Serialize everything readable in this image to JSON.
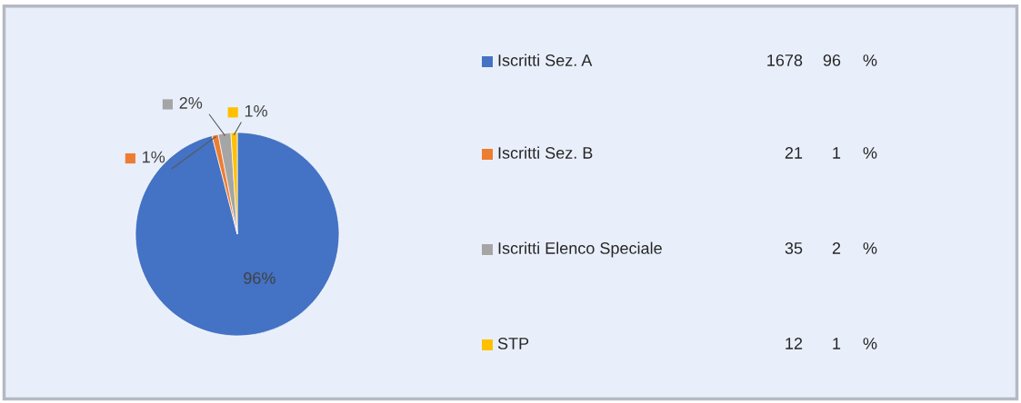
{
  "chart_data": {
    "type": "pie",
    "categories": [
      "Iscritti Sez. A",
      "Iscritti Sez. B",
      "Iscritti Elenco Speciale",
      "STP"
    ],
    "values": [
      96,
      1,
      2,
      1
    ],
    "colors": [
      "#4472c4",
      "#ed7d31",
      "#a5a5a5",
      "#ffc000"
    ],
    "value_labels": [
      "96%",
      "1%",
      "2%",
      "1%"
    ],
    "annotations": [
      "1678",
      "96",
      "%",
      "21",
      "1",
      "%",
      "35",
      "2",
      "%",
      "12",
      "1",
      "%"
    ],
    "legend": "right"
  }
}
